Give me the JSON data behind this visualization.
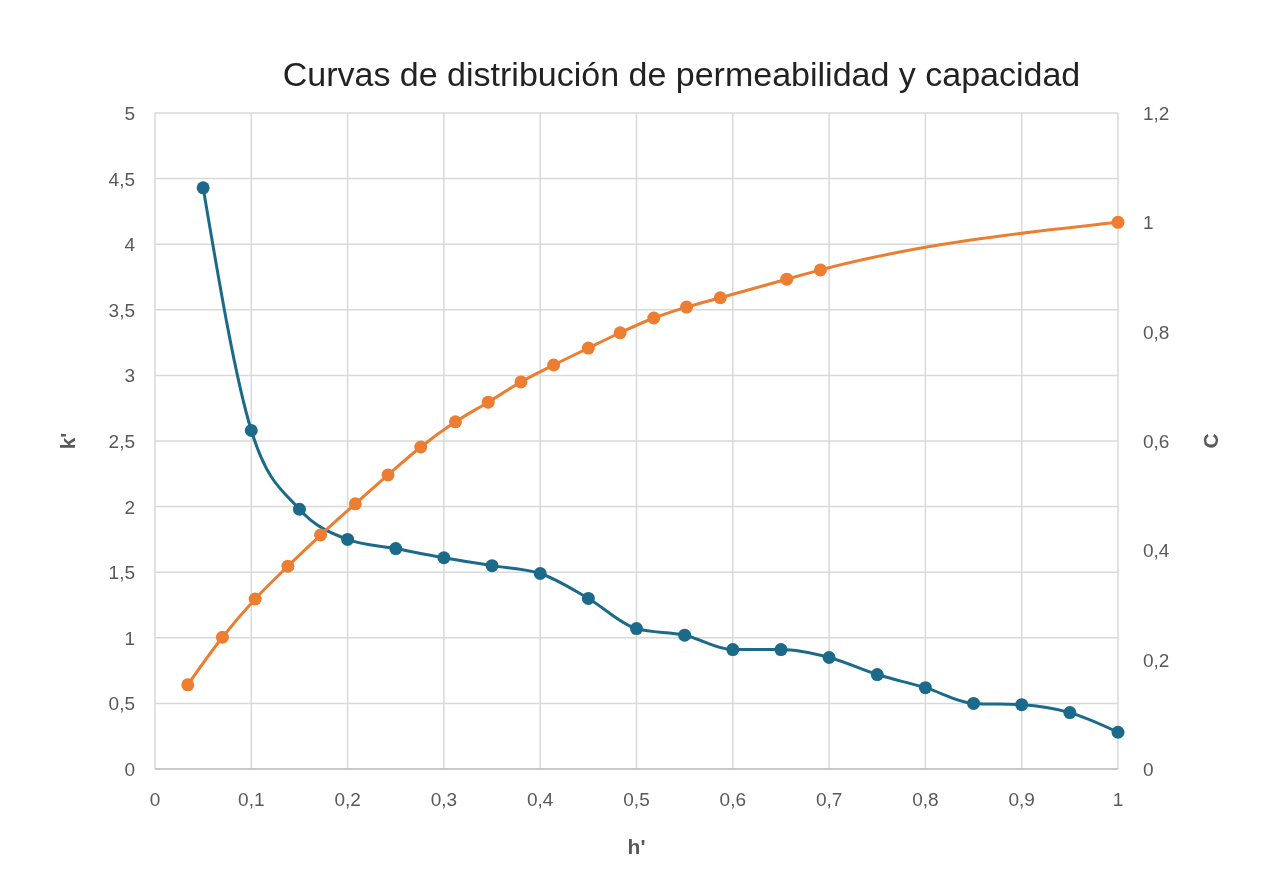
{
  "chart_data": {
    "type": "line",
    "title": "Curvas de distribución de permeabilidad y capacidad",
    "xlabel": "h'",
    "ylabel": "k'",
    "y2label": "C",
    "xlim": [
      0,
      1
    ],
    "xticks": [
      {
        "value": 0,
        "label": "0"
      },
      {
        "value": 0.1,
        "label": "0,1"
      },
      {
        "value": 0.2,
        "label": "0,2"
      },
      {
        "value": 0.3,
        "label": "0,3"
      },
      {
        "value": 0.4,
        "label": "0,4"
      },
      {
        "value": 0.5,
        "label": "0,5"
      },
      {
        "value": 0.6,
        "label": "0,6"
      },
      {
        "value": 0.7,
        "label": "0,7"
      },
      {
        "value": 0.8,
        "label": "0,8"
      },
      {
        "value": 0.9,
        "label": "0,9"
      },
      {
        "value": 1,
        "label": "1"
      }
    ],
    "ylim": [
      0,
      5
    ],
    "yticks": [
      {
        "value": 0,
        "label": "0"
      },
      {
        "value": 0.5,
        "label": "0,5"
      },
      {
        "value": 1,
        "label": "1"
      },
      {
        "value": 1.5,
        "label": "1,5"
      },
      {
        "value": 2,
        "label": "2"
      },
      {
        "value": 2.5,
        "label": "2,5"
      },
      {
        "value": 3,
        "label": "3"
      },
      {
        "value": 3.5,
        "label": "3,5"
      },
      {
        "value": 4,
        "label": "4"
      },
      {
        "value": 4.5,
        "label": "4,5"
      },
      {
        "value": 5,
        "label": "5"
      }
    ],
    "y2lim": [
      0,
      1.2
    ],
    "y2ticks": [
      {
        "value": 0,
        "label": "0"
      },
      {
        "value": 0.2,
        "label": "0,2"
      },
      {
        "value": 0.4,
        "label": "0,4"
      },
      {
        "value": 0.6,
        "label": "0,6"
      },
      {
        "value": 0.8,
        "label": "0,8"
      },
      {
        "value": 1,
        "label": "1"
      },
      {
        "value": 1.2,
        "label": "1,2"
      }
    ],
    "grid": true,
    "marker": "circle",
    "line_style": "solid",
    "series": [
      {
        "color": "#1b6a8a",
        "x": [
          0.05,
          0.1,
          0.15,
          0.2,
          0.25,
          0.3,
          0.35,
          0.4,
          0.45,
          0.5,
          0.55,
          0.6,
          0.65,
          0.7,
          0.75,
          0.8,
          0.85,
          0.9,
          0.95,
          1.0
        ],
        "values": [
          4.43,
          2.58,
          1.98,
          1.75,
          1.68,
          1.61,
          1.55,
          1.49,
          1.3,
          1.07,
          1.02,
          0.91,
          0.91,
          0.85,
          0.72,
          0.62,
          0.5,
          0.49,
          0.43,
          0.28
        ]
      },
      {
        "color": "#ed7d31",
        "axis": "y2",
        "x": [
          0.034,
          0.07,
          0.104,
          0.138,
          0.172,
          0.208,
          0.242,
          0.276,
          0.312,
          0.346,
          0.38,
          0.414,
          0.45,
          0.483,
          0.518,
          0.552,
          0.587,
          0.656,
          0.691,
          1.0
        ],
        "values": [
          0.154,
          0.241,
          0.311,
          0.371,
          0.428,
          0.485,
          0.538,
          0.589,
          0.635,
          0.671,
          0.708,
          0.739,
          0.77,
          0.798,
          0.825,
          0.845,
          0.862,
          0.896,
          0.913,
          1.0
        ]
      }
    ]
  }
}
